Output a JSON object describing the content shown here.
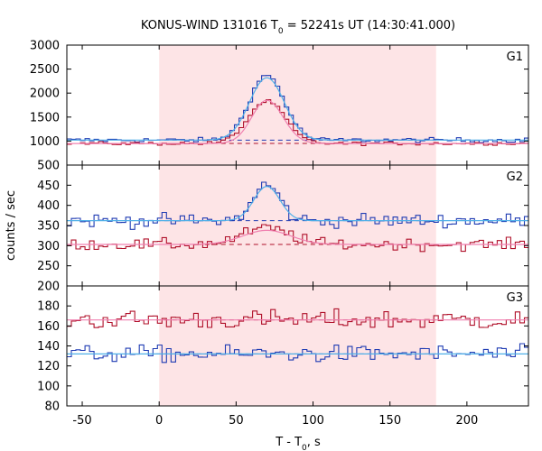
{
  "chart_data": {
    "type": "line",
    "title_parts": {
      "prefix": "KONUS-WIND 131016 T",
      "sub": "0",
      "suffix": " = 52241s UT (14:30:41.000)"
    },
    "xlabel_parts": {
      "prefix": "T - T",
      "sub": "0",
      "suffix": ", s"
    },
    "ylabel": "counts / sec",
    "xlim": [
      -60,
      240
    ],
    "xticks": [
      -50,
      0,
      50,
      100,
      150,
      200
    ],
    "shaded_interval": [
      0,
      180
    ],
    "colors": {
      "shade": "#fde4e6",
      "dark_blue": "#1f3bb3",
      "light_blue": "#4fb0e8",
      "dark_red": "#b0102a",
      "light_red": "#f080b0"
    },
    "panels": [
      {
        "label": "G1",
        "ylim": [
          500,
          3000
        ],
        "yticks": [
          500,
          1000,
          1500,
          2000,
          2500,
          3000
        ],
        "background": {
          "blue": 1020,
          "red": 950
        },
        "series": [
          {
            "name": "",
            "color": "#1f3bb3",
            "style": "step",
            "bin": 2.944,
            "peaks": [
              {
                "center": 70,
                "amplitude": 1350,
                "rise": 16,
                "fall": 16
              }
            ],
            "base": 1020,
            "noise": 35
          },
          {
            "name": "",
            "color": "#4fb0e8",
            "style": "smooth",
            "peaks": [
              {
                "center": 70,
                "amplitude": 1300,
                "rise": 16,
                "fall": 16
              }
            ],
            "base": 1020,
            "noise": 0
          },
          {
            "name": "",
            "color": "#b0102a",
            "style": "step",
            "bin": 2.944,
            "peaks": [
              {
                "center": 70,
                "amplitude": 880,
                "rise": 17,
                "fall": 17
              }
            ],
            "base": 950,
            "noise": 25
          },
          {
            "name": "",
            "color": "#f080b0",
            "style": "smooth",
            "peaks": [
              {
                "center": 70,
                "amplitude": 900,
                "rise": 14,
                "fall": 15
              }
            ],
            "base": 950,
            "noise": 0
          }
        ]
      },
      {
        "label": "G2",
        "ylim": [
          200,
          500
        ],
        "yticks": [
          200,
          250,
          300,
          350,
          400,
          450,
          500
        ],
        "background": {
          "blue": 362,
          "red": 303
        },
        "series": [
          {
            "name": "",
            "color": "#1f3bb3",
            "style": "step",
            "bin": 2.944,
            "peaks": [
              {
                "center": 70,
                "amplitude": 90,
                "rise": 12,
                "fall": 12
              }
            ],
            "base": 362,
            "noise": 12
          },
          {
            "name": "",
            "color": "#4fb0e8",
            "style": "smooth",
            "peaks": [
              {
                "center": 70,
                "amplitude": 85,
                "rise": 12,
                "fall": 12
              }
            ],
            "base": 362,
            "noise": 0
          },
          {
            "name": "",
            "color": "#b0102a",
            "style": "step",
            "bin": 2.944,
            "peaks": [
              {
                "center": 70,
                "amplitude": 40,
                "rise": 22,
                "fall": 22
              }
            ],
            "base": 303,
            "noise": 10
          },
          {
            "name": "",
            "color": "#f080b0",
            "style": "smooth",
            "peaks": [
              {
                "center": 70,
                "amplitude": 35,
                "rise": 22,
                "fall": 22
              }
            ],
            "base": 303,
            "noise": 0
          }
        ]
      },
      {
        "label": "G3",
        "ylim": [
          80,
          200
        ],
        "yticks": [
          80,
          100,
          120,
          140,
          160,
          180,
          200
        ],
        "background": {
          "blue": 132,
          "red": 166
        },
        "series": [
          {
            "name": "",
            "color": "#b0102a",
            "style": "step",
            "bin": 2.944,
            "peaks": [],
            "base": 166,
            "noise": 7
          },
          {
            "name": "",
            "color": "#f080b0",
            "style": "smooth",
            "peaks": [],
            "base": 166,
            "noise": 0
          },
          {
            "name": "",
            "color": "#1f3bb3",
            "style": "step",
            "bin": 2.944,
            "peaks": [],
            "base": 132,
            "noise": 6
          },
          {
            "name": "",
            "color": "#4fb0e8",
            "style": "smooth",
            "peaks": [],
            "base": 132,
            "noise": 0
          }
        ]
      }
    ]
  }
}
